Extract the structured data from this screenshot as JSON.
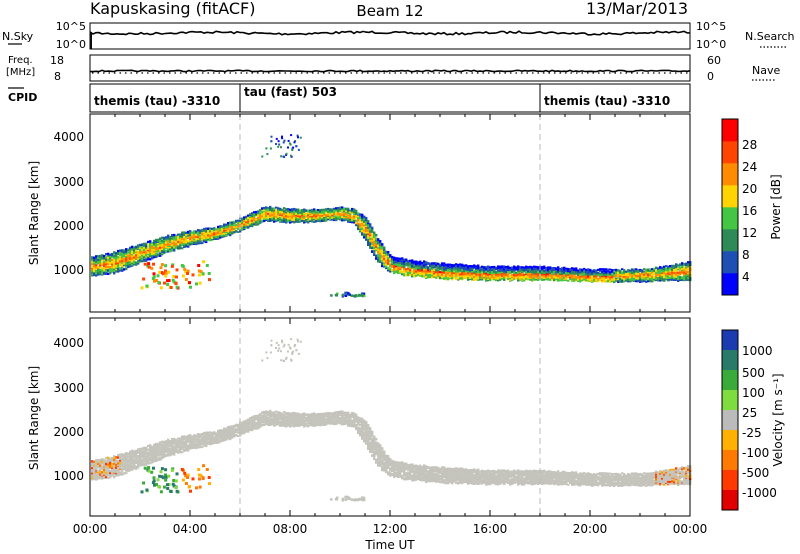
{
  "header": {
    "title": "Kapuskasing (fitACF)",
    "beam": "Beam 12",
    "date": "13/Mar/2013"
  },
  "noise_panel": {
    "left_label": "N.Sky",
    "left_top": "10^5",
    "left_bottom": "10^0",
    "right_top": "10^5",
    "right_bottom": "10^0",
    "right_label": "N.Search"
  },
  "freq_panel": {
    "left_label_1": "Freq.",
    "left_label_2": "[MHz]",
    "left_top": "18",
    "left_bottom": "8",
    "right_top": "60",
    "right_bottom": "0",
    "right_label": "Nave"
  },
  "cpid_panel": {
    "label": "CPID",
    "segments": [
      {
        "label": "themis (tau) -3310",
        "start_hour": 0.0
      },
      {
        "label": "tau (fast) 503",
        "start_hour": 6.0
      },
      {
        "label": "themis (tau) -3310",
        "start_hour": 18.0
      }
    ]
  },
  "power_panel": {
    "ylabel": "Slant Range [km]",
    "yticks": [
      "4000",
      "3000",
      "2000",
      "1000"
    ],
    "colorbar_label": "Power [dB]",
    "colorbar_ticks": [
      "28",
      "24",
      "20",
      "16",
      "12",
      "8",
      "4"
    ],
    "colors": [
      "#0000ff",
      "#1e4fb4",
      "#2e8b57",
      "#44c644",
      "#ffd400",
      "#ff8c00",
      "#ff4500",
      "#ff0000"
    ]
  },
  "velocity_panel": {
    "ylabel": "Slant Range [km]",
    "yticks": [
      "4000",
      "3000",
      "2000",
      "1000"
    ],
    "colorbar_label": "Velocity [m s⁻¹]",
    "colorbar_ticks": [
      "1000",
      "500",
      "100",
      "25",
      "-25",
      "-100",
      "-500",
      "-1000"
    ],
    "colors": [
      "#1a3cb0",
      "#2a7a6a",
      "#3aaa3a",
      "#7fdc3f",
      "#bbbbbb",
      "#ffb000",
      "#ff7a00",
      "#ff3a00",
      "#e00000"
    ],
    "ground_scatter_color": "#c4c4bc"
  },
  "x_axis": {
    "label": "Time UT",
    "ticks": [
      "00:00",
      "04:00",
      "08:00",
      "12:00",
      "16:00",
      "20:00",
      "00:00"
    ]
  },
  "chart_data": {
    "type": "heatmap",
    "title": "Kapuskasing (fitACF)",
    "subtitle": "Beam 12",
    "date": "13/Mar/2013",
    "xlabel": "Time UT",
    "ylabel": "Slant Range [km]",
    "x_range_hours": [
      0,
      24
    ],
    "y_range_km": [
      180,
      4650
    ],
    "cpid_boundaries_hours": [
      6.0,
      18.0
    ],
    "scatter_band": {
      "time_hours": [
        0.0,
        1.0,
        2.0,
        3.0,
        4.0,
        5.0,
        6.0,
        7.0,
        8.0,
        9.0,
        10.0,
        10.5,
        11.0,
        11.5,
        12.0,
        13.0,
        14.0,
        16.0,
        18.0,
        20.0,
        22.0,
        23.0,
        24.0
      ],
      "center_range_km": [
        1200,
        1300,
        1500,
        1700,
        1850,
        1950,
        2150,
        2400,
        2350,
        2350,
        2400,
        2350,
        2050,
        1550,
        1250,
        1150,
        1100,
        1050,
        1050,
        1000,
        1000,
        1050,
        1100
      ],
      "half_width_km": [
        200,
        220,
        200,
        180,
        150,
        130,
        130,
        150,
        140,
        130,
        130,
        140,
        250,
        250,
        180,
        170,
        160,
        150,
        140,
        130,
        130,
        150,
        200
      ]
    },
    "power_db_range": [
      0,
      30
    ],
    "velocity_range_ms": [
      -1000,
      1000
    ],
    "noise_sky_log10": 4.0,
    "frequency_mhz": 10.5,
    "nave": 22
  }
}
